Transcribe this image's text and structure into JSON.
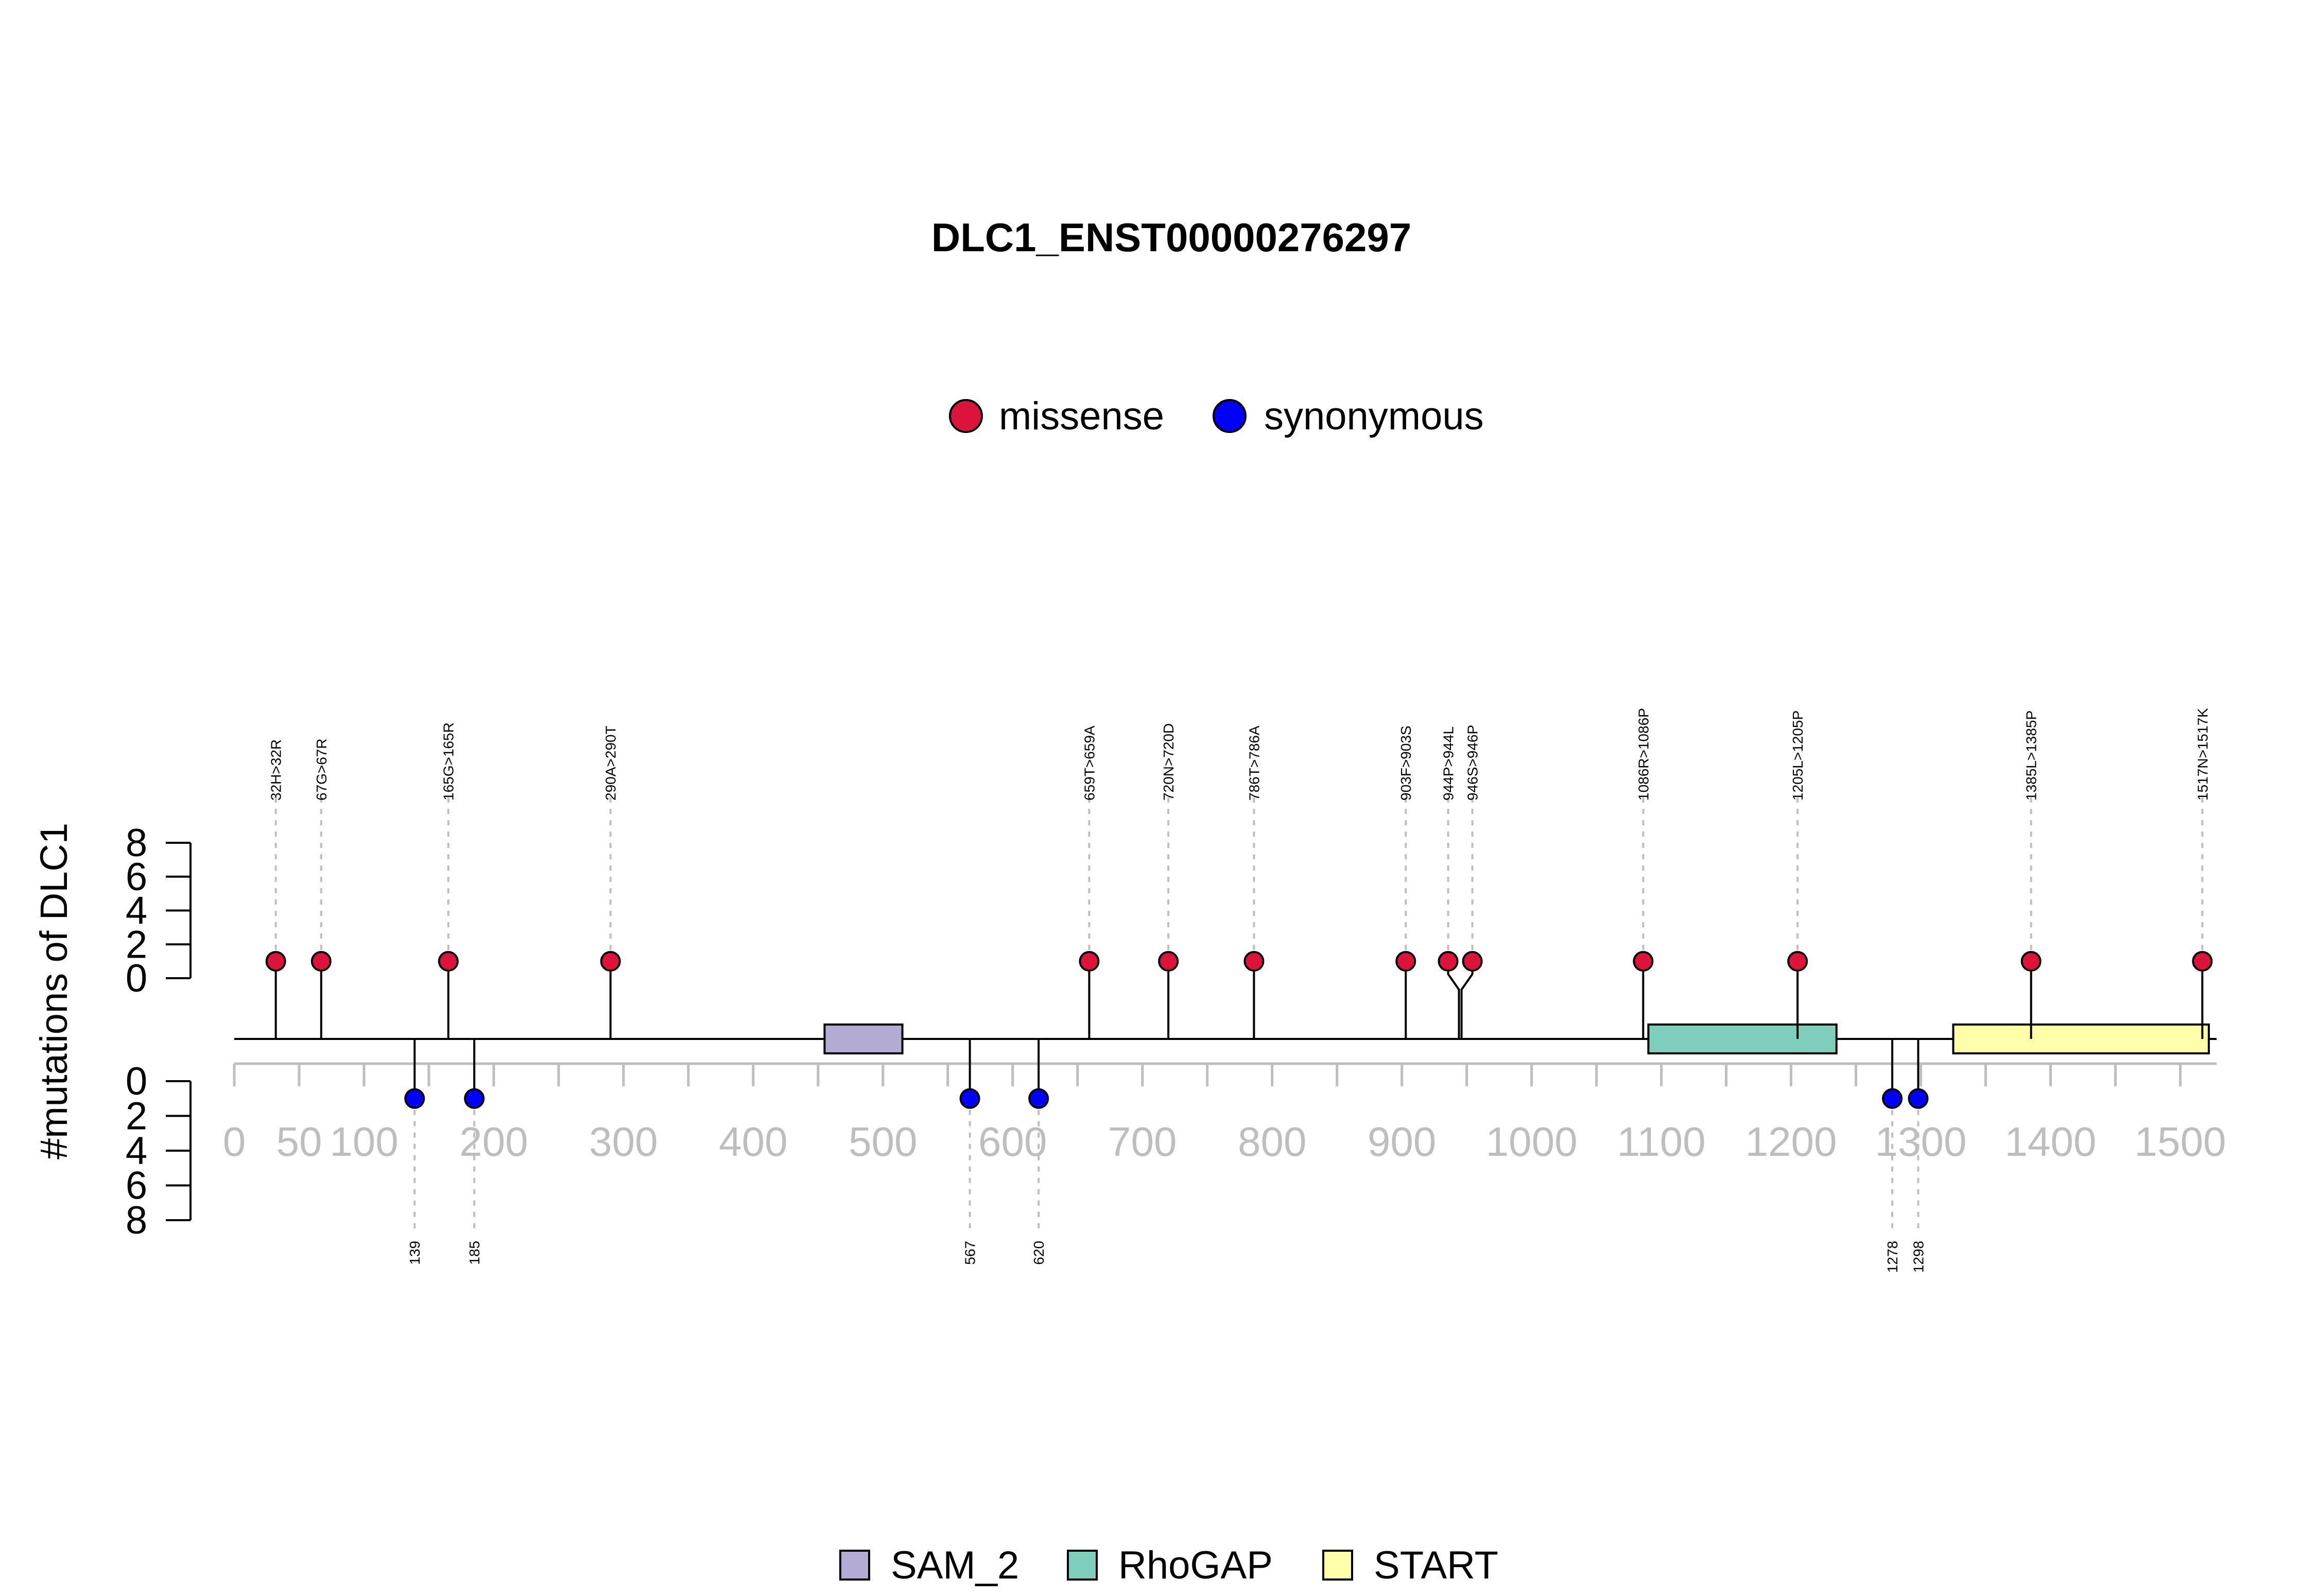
{
  "chart_data": {
    "type": "lollipop",
    "title": "DLC1_ENST00000276297",
    "ylabel": "#mutations of DLC1",
    "ylim": [
      0,
      8
    ],
    "y_ticks": [
      0,
      2,
      4,
      6,
      8
    ],
    "xlim": [
      0,
      1528
    ],
    "x_ticks": [
      "0",
      "50",
      "100",
      "200",
      "300",
      "400",
      "500",
      "600",
      "700",
      "800",
      "900",
      "1000",
      "1100",
      "1200",
      "1300",
      "1400",
      "1500"
    ],
    "x_tick_values": [
      0,
      50,
      100,
      200,
      300,
      400,
      500,
      600,
      700,
      800,
      900,
      1000,
      1100,
      1200,
      1300,
      1400,
      1500
    ],
    "legend_top": [
      {
        "name": "missense",
        "color": "#DC143C"
      },
      {
        "name": "synonymous",
        "color": "#0000FF"
      }
    ],
    "legend_bottom": [
      {
        "name": "SAM_2",
        "color": "#B3ABD3"
      },
      {
        "name": "RhoGAP",
        "color": "#7FCDBB"
      },
      {
        "name": "START",
        "color": "#FFFFAA"
      }
    ],
    "domains": [
      {
        "name": "SAM_2",
        "start": 455,
        "end": 515,
        "color": "#B3ABD3"
      },
      {
        "name": "RhoGAP",
        "start": 1090,
        "end": 1235,
        "color": "#7FCDBB"
      },
      {
        "name": "START",
        "start": 1325,
        "end": 1522,
        "color": "#FFFFAA"
      }
    ],
    "missense": [
      {
        "pos": 32,
        "count": 1,
        "label": "32H>32R"
      },
      {
        "pos": 67,
        "count": 1,
        "label": "67G>67R"
      },
      {
        "pos": 165,
        "count": 1,
        "label": "165G>165R"
      },
      {
        "pos": 290,
        "count": 1,
        "label": "290A>290T"
      },
      {
        "pos": 659,
        "count": 1,
        "label": "659T>659A"
      },
      {
        "pos": 720,
        "count": 1,
        "label": "720N>720D"
      },
      {
        "pos": 786,
        "count": 1,
        "label": "786T>786A"
      },
      {
        "pos": 903,
        "count": 1,
        "label": "903F>903S"
      },
      {
        "pos": 944,
        "count": 1,
        "label": "944P>944L"
      },
      {
        "pos": 946,
        "count": 1,
        "label": "946S>946P"
      },
      {
        "pos": 1086,
        "count": 1,
        "label": "1086R>1086P"
      },
      {
        "pos": 1205,
        "count": 1,
        "label": "1205L>1205P"
      },
      {
        "pos": 1385,
        "count": 1,
        "label": "1385L>1385P"
      },
      {
        "pos": 1517,
        "count": 1,
        "label": "1517N>1517K"
      }
    ],
    "synonymous": [
      {
        "pos": 139,
        "count": 1,
        "label": "139"
      },
      {
        "pos": 185,
        "count": 1,
        "label": "185"
      },
      {
        "pos": 567,
        "count": 1,
        "label": "567"
      },
      {
        "pos": 620,
        "count": 1,
        "label": "620"
      },
      {
        "pos": 1278,
        "count": 1,
        "label": "1278"
      },
      {
        "pos": 1298,
        "count": 1,
        "label": "1298"
      }
    ]
  }
}
